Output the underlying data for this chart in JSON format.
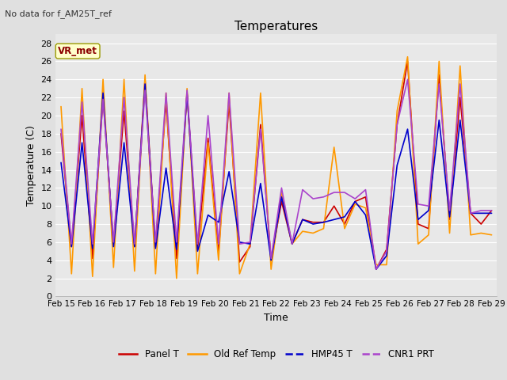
{
  "title": "Temperatures",
  "xlabel": "Time",
  "ylabel": "Temperature (C)",
  "annotation_text": "No data for f_AM25T_ref",
  "box_label": "VR_met",
  "ylim": [
    0,
    29
  ],
  "yticks": [
    0,
    2,
    4,
    6,
    8,
    10,
    12,
    14,
    16,
    18,
    20,
    22,
    24,
    26,
    28
  ],
  "xtick_labels": [
    "Feb 15",
    "Feb 16",
    "Feb 17",
    "Feb 18",
    "Feb 19",
    "Feb 20",
    "Feb 21",
    "Feb 22",
    "Feb 23",
    "Feb 24",
    "Feb 25",
    "Feb 26",
    "Feb 27",
    "Feb 28",
    "Feb 29"
  ],
  "background_color": "#e0e0e0",
  "plot_bg_color": "#e8e8e8",
  "grid_color": "#ffffff",
  "series": {
    "Panel T": {
      "color": "#cc0000",
      "linewidth": 1.2,
      "x": [
        0,
        1,
        2,
        3,
        4,
        5,
        6,
        7,
        8,
        9,
        10,
        11,
        12,
        13,
        14,
        15,
        16,
        17,
        18,
        19,
        20,
        21,
        22,
        23,
        24,
        25,
        26,
        27,
        28,
        29,
        30,
        31,
        32,
        33,
        34,
        35,
        36,
        37,
        38,
        39,
        40,
        41
      ],
      "y": [
        18.0,
        5.5,
        20.0,
        4.2,
        22.0,
        5.8,
        20.5,
        5.5,
        24.0,
        5.5,
        21.5,
        4.2,
        22.5,
        5.2,
        17.5,
        4.8,
        21.5,
        3.8,
        5.5,
        19.0,
        4.0,
        10.5,
        5.8,
        8.5,
        8.2,
        8.2,
        10.0,
        8.0,
        10.5,
        11.0,
        3.0,
        5.2,
        19.0,
        26.0,
        8.0,
        7.5,
        24.5,
        8.5,
        22.0,
        9.2,
        8.0,
        9.5
      ]
    },
    "Old Ref Temp": {
      "color": "#ff9900",
      "linewidth": 1.2,
      "x": [
        0,
        1,
        2,
        3,
        4,
        5,
        6,
        7,
        8,
        9,
        10,
        11,
        12,
        13,
        14,
        15,
        16,
        17,
        18,
        19,
        20,
        21,
        22,
        23,
        24,
        25,
        26,
        27,
        28,
        29,
        30,
        31,
        32,
        33,
        34,
        35,
        36,
        37,
        38,
        39,
        40,
        41
      ],
      "y": [
        21.0,
        2.5,
        23.0,
        2.2,
        24.0,
        3.2,
        24.0,
        2.8,
        24.5,
        2.5,
        22.5,
        2.0,
        23.0,
        2.5,
        17.0,
        4.0,
        22.5,
        2.5,
        5.8,
        22.5,
        3.0,
        11.5,
        5.8,
        7.2,
        7.0,
        7.5,
        16.5,
        7.5,
        10.2,
        9.8,
        3.5,
        3.5,
        20.5,
        26.5,
        5.8,
        6.8,
        26.0,
        7.0,
        25.5,
        6.8,
        7.0,
        6.8
      ]
    },
    "HMP45 T": {
      "color": "#0000cc",
      "linewidth": 1.2,
      "x": [
        0,
        1,
        2,
        3,
        4,
        5,
        6,
        7,
        8,
        9,
        10,
        11,
        12,
        13,
        14,
        15,
        16,
        17,
        18,
        19,
        20,
        21,
        22,
        23,
        24,
        25,
        26,
        27,
        28,
        29,
        30,
        31,
        32,
        33,
        34,
        35,
        36,
        37,
        38,
        39,
        40,
        41
      ],
      "y": [
        14.8,
        5.5,
        17.0,
        5.3,
        22.5,
        5.5,
        17.0,
        5.5,
        23.5,
        5.3,
        14.2,
        5.2,
        22.5,
        5.0,
        9.0,
        8.2,
        13.8,
        6.0,
        5.8,
        12.5,
        4.0,
        11.0,
        5.8,
        8.5,
        8.0,
        8.2,
        8.5,
        8.8,
        10.5,
        9.0,
        3.0,
        4.5,
        14.5,
        18.5,
        8.5,
        9.5,
        19.5,
        8.8,
        19.5,
        9.2,
        9.2,
        9.2
      ]
    },
    "CNR1 PRT": {
      "color": "#aa44cc",
      "linewidth": 1.2,
      "x": [
        0,
        1,
        2,
        3,
        4,
        5,
        6,
        7,
        8,
        9,
        10,
        11,
        12,
        13,
        14,
        15,
        16,
        17,
        18,
        19,
        20,
        21,
        22,
        23,
        24,
        25,
        26,
        27,
        28,
        29,
        30,
        31,
        32,
        33,
        34,
        35,
        36,
        37,
        38,
        39,
        40,
        41
      ],
      "y": [
        18.5,
        5.8,
        21.5,
        5.8,
        21.8,
        6.0,
        22.0,
        5.8,
        22.8,
        6.0,
        22.5,
        6.0,
        22.8,
        5.8,
        20.0,
        5.8,
        22.5,
        5.8,
        6.0,
        18.5,
        4.2,
        12.0,
        5.8,
        11.8,
        10.8,
        11.0,
        11.5,
        11.5,
        10.8,
        11.8,
        3.0,
        5.0,
        19.0,
        24.0,
        10.2,
        10.0,
        23.5,
        9.5,
        23.5,
        9.2,
        9.5,
        9.5
      ]
    }
  },
  "legend_entries": [
    "Panel T",
    "Old Ref Temp",
    "HMP45 T",
    "CNR1 PRT"
  ],
  "legend_colors": [
    "#cc0000",
    "#ff9900",
    "#0000cc",
    "#aa44cc"
  ],
  "legend_linestyles": [
    "-",
    "-",
    "--",
    "--"
  ]
}
